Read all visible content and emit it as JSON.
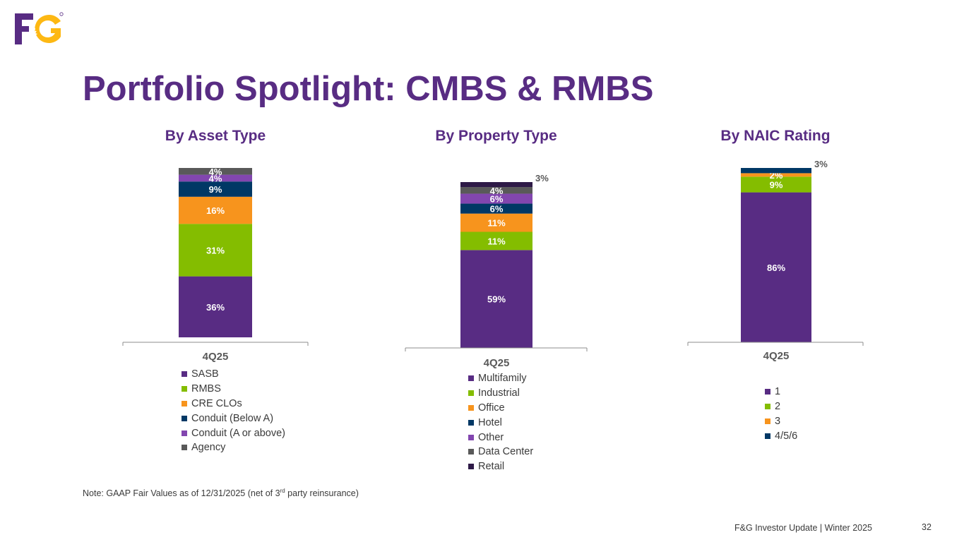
{
  "header": {
    "logo_text": "F&G",
    "title": "Portfolio Spotlight: CMBS & RMBS"
  },
  "colors": {
    "brand_purple": "#582C83",
    "brand_gold": "#FDB813",
    "sasb": "#582C83",
    "green": "#84BD00",
    "orange": "#F7941D",
    "navy": "#003865",
    "light_purple": "#8246AF",
    "gray": "#595959",
    "dark_purple": "#2E1A47"
  },
  "chart_data": [
    {
      "type": "bar",
      "stacked": true,
      "title": "By Asset Type",
      "categories": [
        "4Q25"
      ],
      "series": [
        {
          "name": "SASB",
          "values": [
            36
          ],
          "label": "36%",
          "color": "#582C83",
          "label_color": "#ffffff"
        },
        {
          "name": "RMBS",
          "values": [
            31
          ],
          "label": "31%",
          "color": "#84BD00",
          "label_color": "#ffffff"
        },
        {
          "name": "CRE CLOs",
          "values": [
            16
          ],
          "label": "16%",
          "color": "#F7941D",
          "label_color": "#ffffff"
        },
        {
          "name": "Conduit (Below A)",
          "values": [
            9
          ],
          "label": "9%",
          "color": "#003865",
          "label_color": "#ffffff"
        },
        {
          "name": "Conduit (A or above)",
          "values": [
            4
          ],
          "label": "4%",
          "color": "#8246AF",
          "label_color": "#ffffff"
        },
        {
          "name": "Agency",
          "values": [
            4
          ],
          "label": "4%",
          "color": "#595959",
          "label_color": "#ffffff"
        }
      ],
      "ylim": [
        0,
        100
      ],
      "legend_position": "bottom"
    },
    {
      "type": "bar",
      "stacked": true,
      "title": "By Property Type",
      "categories": [
        "4Q25"
      ],
      "series": [
        {
          "name": "Multifamily",
          "values": [
            59
          ],
          "label": "59%",
          "color": "#582C83",
          "label_color": "#ffffff"
        },
        {
          "name": "Industrial",
          "values": [
            11
          ],
          "label": "11%",
          "color": "#84BD00",
          "label_color": "#ffffff"
        },
        {
          "name": "Office",
          "values": [
            11
          ],
          "label": "11%",
          "color": "#F7941D",
          "label_color": "#ffffff"
        },
        {
          "name": "Hotel",
          "values": [
            6
          ],
          "label": "6%",
          "color": "#003865",
          "label_color": "#ffffff"
        },
        {
          "name": "Other",
          "values": [
            6
          ],
          "label": "6%",
          "color": "#8246AF",
          "label_color": "#ffffff"
        },
        {
          "name": "Data Center",
          "values": [
            4
          ],
          "label": "4%",
          "color": "#595959",
          "label_color": "#ffffff"
        },
        {
          "name": "Retail",
          "values": [
            3
          ],
          "label": "3%",
          "color": "#2E1A47",
          "label_color": "#595959",
          "label_outside": true
        }
      ],
      "ylim": [
        0,
        100
      ],
      "legend_position": "bottom"
    },
    {
      "type": "bar",
      "stacked": true,
      "title": "By NAIC Rating",
      "categories": [
        "4Q25"
      ],
      "series": [
        {
          "name": "1",
          "values": [
            86
          ],
          "label": "86%",
          "color": "#582C83",
          "label_color": "#ffffff"
        },
        {
          "name": "2",
          "values": [
            9
          ],
          "label": "9%",
          "color": "#84BD00",
          "label_color": "#ffffff"
        },
        {
          "name": "3",
          "values": [
            2
          ],
          "label": "2%",
          "color": "#F7941D",
          "label_color": "#ffffff"
        },
        {
          "name": "4/5/6",
          "values": [
            3
          ],
          "label": "3%",
          "color": "#003865",
          "label_color": "#595959",
          "label_outside": true
        }
      ],
      "ylim": [
        0,
        100
      ],
      "legend_position": "bottom"
    }
  ],
  "note": {
    "prefix": "Note: GAAP Fair Values as of 12/31/2025 (net of 3",
    "superscript": "rd",
    "suffix": " party reinsurance)"
  },
  "footer": {
    "text": "F&G Investor Update |  Winter 2025",
    "page_number": "32"
  }
}
